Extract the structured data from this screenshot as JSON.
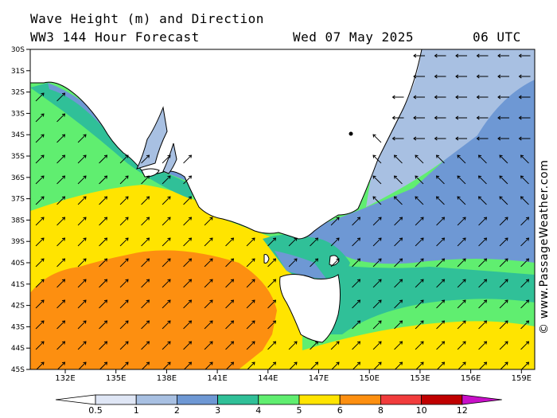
{
  "header": {
    "title": "Wave Height (m) and Direction",
    "model": "WW3 144 Hour Forecast",
    "date": "Wed 07 May 2025",
    "time": "06 UTC"
  },
  "credit": "© www.PassageWeather.com",
  "axes": {
    "lat_labels": [
      "30S",
      "31S",
      "32S",
      "33S",
      "34S",
      "35S",
      "36S",
      "37S",
      "38S",
      "39S",
      "40S",
      "41S",
      "42S",
      "43S",
      "44S",
      "45S"
    ],
    "lon_labels": [
      "132E",
      "135E",
      "138E",
      "141E",
      "144E",
      "147E",
      "150E",
      "153E",
      "156E",
      "159E"
    ]
  },
  "legend": {
    "labels": [
      "0.5",
      "1",
      "2",
      "3",
      "4",
      "5",
      "6",
      "8",
      "10",
      "12"
    ],
    "colors": [
      "#dfe6f5",
      "#a8c0e2",
      "#6e98d4",
      "#30c098",
      "#60ee70",
      "#ffe400",
      "#fd8f10",
      "#f13c3c",
      "#c00000",
      "#c810c8"
    ]
  },
  "map": {
    "land_color": "#ffffff",
    "arrow_color": "#000000"
  }
}
